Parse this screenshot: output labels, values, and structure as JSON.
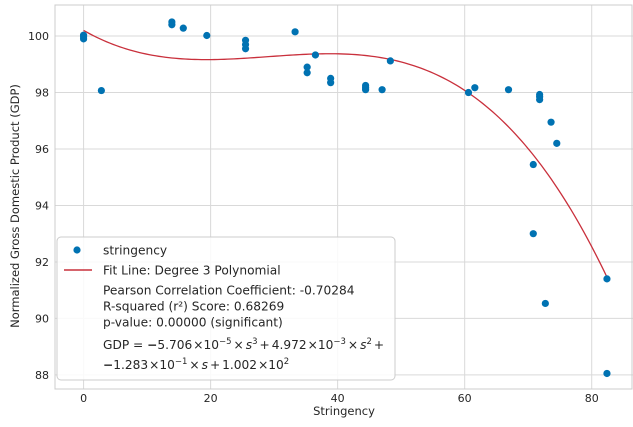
{
  "chart_data": {
    "type": "scatter",
    "xlabel": "Stringency",
    "ylabel": "Normalized Gross Domestic Product (GDP)",
    "xlim": [
      -4.5,
      86.5
    ],
    "ylim": [
      87.5,
      101.1
    ],
    "x_ticks": [
      0,
      20,
      40,
      60,
      80
    ],
    "y_ticks": [
      88,
      90,
      92,
      94,
      96,
      98,
      100
    ],
    "x_tick_labels": [
      "0",
      "20",
      "40",
      "60",
      "80"
    ],
    "y_tick_labels": [
      "88",
      "90",
      "92",
      "94",
      "96",
      "98",
      "100"
    ],
    "grid": true,
    "legend_position": "lower-left",
    "series": [
      {
        "name": "stringency",
        "kind": "scatter",
        "color": "#0072b2",
        "points": [
          {
            "x": 0.0,
            "y": 99.9
          },
          {
            "x": 0.0,
            "y": 99.97
          },
          {
            "x": 0.0,
            "y": 100.03
          },
          {
            "x": 2.8,
            "y": 98.07
          },
          {
            "x": 13.9,
            "y": 100.4
          },
          {
            "x": 13.9,
            "y": 100.5
          },
          {
            "x": 15.7,
            "y": 100.28
          },
          {
            "x": 19.4,
            "y": 100.02
          },
          {
            "x": 25.5,
            "y": 99.55
          },
          {
            "x": 25.5,
            "y": 99.7
          },
          {
            "x": 25.5,
            "y": 99.85
          },
          {
            "x": 33.3,
            "y": 100.15
          },
          {
            "x": 35.2,
            "y": 98.7
          },
          {
            "x": 35.2,
            "y": 98.9
          },
          {
            "x": 36.5,
            "y": 99.33
          },
          {
            "x": 38.9,
            "y": 98.35
          },
          {
            "x": 38.9,
            "y": 98.5
          },
          {
            "x": 44.4,
            "y": 98.1
          },
          {
            "x": 44.4,
            "y": 98.17
          },
          {
            "x": 44.4,
            "y": 98.25
          },
          {
            "x": 47.0,
            "y": 98.1
          },
          {
            "x": 48.3,
            "y": 99.12
          },
          {
            "x": 60.6,
            "y": 98.0
          },
          {
            "x": 61.6,
            "y": 98.17
          },
          {
            "x": 66.9,
            "y": 98.1
          },
          {
            "x": 70.8,
            "y": 95.45
          },
          {
            "x": 70.8,
            "y": 93.0
          },
          {
            "x": 71.8,
            "y": 97.75
          },
          {
            "x": 71.8,
            "y": 97.85
          },
          {
            "x": 71.8,
            "y": 97.93
          },
          {
            "x": 72.7,
            "y": 90.53
          },
          {
            "x": 73.6,
            "y": 96.95
          },
          {
            "x": 74.5,
            "y": 96.2
          },
          {
            "x": 82.4,
            "y": 91.4
          },
          {
            "x": 82.4,
            "y": 88.05
          }
        ]
      },
      {
        "name": "Fit Line: Degree 3 Polynomial",
        "kind": "line",
        "color": "#c9303c",
        "coefficients": {
          "a3": -5.706e-05,
          "a2": 0.004972,
          "a1": -0.1283,
          "a0": 100.2
        },
        "x_range": [
          0,
          82.4
        ]
      }
    ],
    "legend": {
      "entries": [
        "stringency",
        "Fit Line: Degree 3 Polynomial"
      ],
      "pearson": "Pearson Correlation Coefficient: -0.70284",
      "r_squared": "R-squared (r²) Score: 0.68269",
      "p_value": "p-value: 0.00000 (significant)",
      "equation_line1": {
        "prefix": "GDP = ",
        "minus1": "−",
        "c3": "5.706",
        "mul": "×10",
        "e3": "−5",
        "times": "×",
        "s": "s",
        "p3": "3",
        "plus": "+",
        "c2": "4.972",
        "e2": "−3",
        "p2": "2"
      },
      "equation_line2": {
        "minus": "−",
        "c1": "1.283",
        "mul": "×10",
        "e1": "−1",
        "times": "×",
        "s": "s",
        "plus": "+",
        "c0": "1.002",
        "e0": "2"
      }
    }
  }
}
